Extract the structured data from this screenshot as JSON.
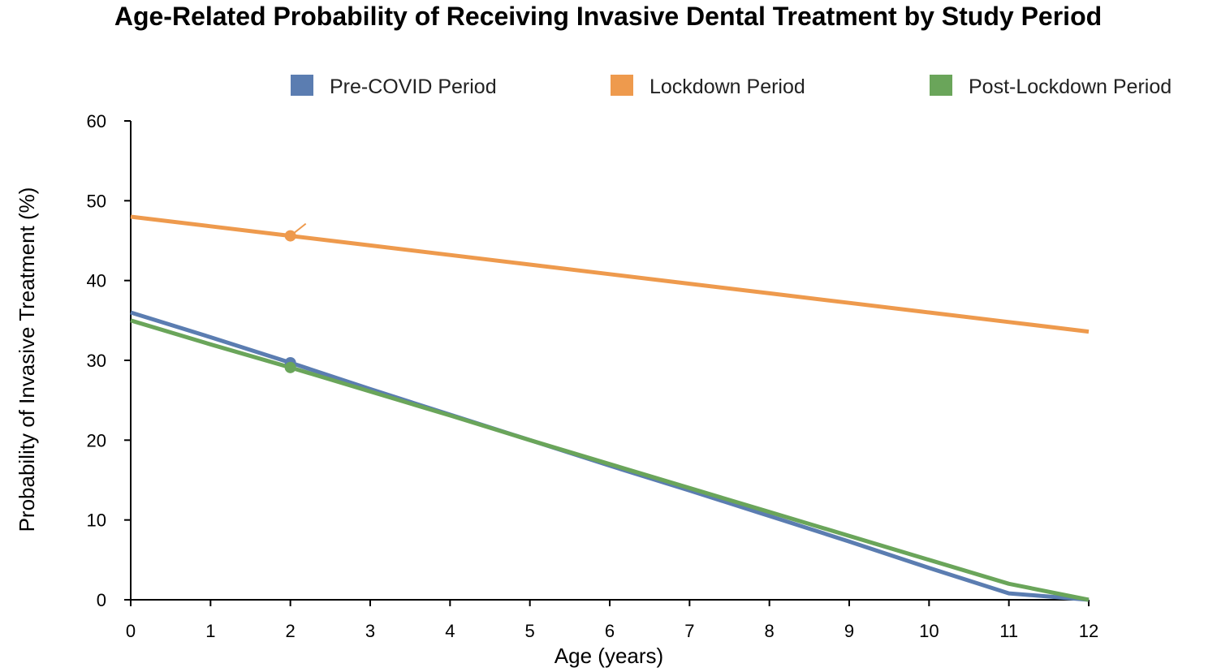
{
  "chart_data": {
    "type": "line",
    "title": "Age-Related Probability of Receiving Invasive Dental Treatment by Study Period",
    "xlabel": "Age (years)",
    "ylabel": "Probability of Invasive Treatment (%)",
    "xlim": [
      0,
      12
    ],
    "ylim": [
      0,
      60
    ],
    "x_ticks": [
      0,
      1,
      2,
      3,
      4,
      5,
      6,
      7,
      8,
      9,
      10,
      11,
      12
    ],
    "y_ticks": [
      0,
      10,
      20,
      30,
      40,
      50,
      60
    ],
    "grid": false,
    "legend_position": "top",
    "series": [
      {
        "name": "Pre-COVID Period",
        "color": "#5B7DB1",
        "x": [
          0,
          1,
          2,
          3,
          4,
          5,
          6,
          7,
          8,
          9,
          10,
          11,
          12
        ],
        "values": [
          36,
          32.9,
          29.7,
          26.4,
          23.2,
          20,
          16.8,
          13.7,
          10.5,
          7.3,
          4,
          0.8,
          0
        ],
        "marker": {
          "x": 2,
          "y": 29.7
        }
      },
      {
        "name": "Lockdown Period",
        "color": "#EE9A4D",
        "x": [
          0,
          1,
          2,
          3,
          4,
          5,
          6,
          7,
          8,
          9,
          10,
          11,
          12
        ],
        "values": [
          48,
          46.8,
          45.6,
          44.4,
          43.2,
          42,
          40.8,
          39.6,
          38.4,
          37.2,
          36,
          34.8,
          33.6
        ],
        "marker": {
          "x": 2,
          "y": 45.6
        }
      },
      {
        "name": "Post-Lockdown Period",
        "color": "#6AA55A",
        "x": [
          0,
          1,
          2,
          3,
          4,
          5,
          6,
          7,
          8,
          9,
          10,
          11,
          12
        ],
        "values": [
          35,
          32,
          29.1,
          26.1,
          23.1,
          20,
          17,
          14,
          11,
          8,
          5,
          2,
          0
        ],
        "marker": {
          "x": 2,
          "y": 29.1
        }
      }
    ]
  }
}
